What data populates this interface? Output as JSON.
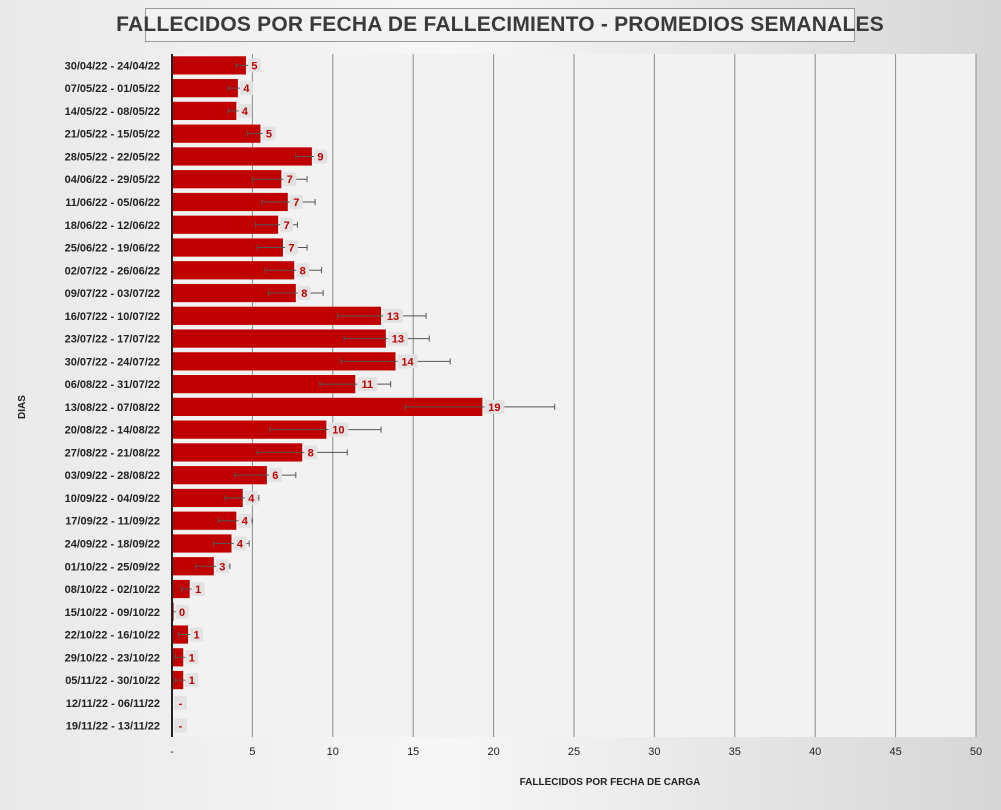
{
  "chart_data": {
    "type": "bar",
    "orientation": "horizontal",
    "title": "FALLECIDOS POR FECHA DE FALLECIMIENTO - PROMEDIOS SEMANALES",
    "ylabel": "DIAS",
    "xlabel": "FALLECIDOS POR FECHA DE CARGA",
    "xlim": [
      0,
      50
    ],
    "xticks": [
      0,
      5,
      10,
      15,
      20,
      25,
      30,
      35,
      40,
      45,
      50
    ],
    "xtick_labels": [
      "-",
      "5",
      "10",
      "15",
      "20",
      "25",
      "30",
      "35",
      "40",
      "45",
      "50"
    ],
    "grid": "vertical",
    "bar_color": "#c00000",
    "label_color": "#c00000",
    "categories": [
      "30/04/22 - 24/04/22",
      "07/05/22 - 01/05/22",
      "14/05/22 - 08/05/22",
      "21/05/22 - 15/05/22",
      "28/05/22 - 22/05/22",
      "04/06/22 - 29/05/22",
      "11/06/22 - 05/06/22",
      "18/06/22 - 12/06/22",
      "25/06/22 - 19/06/22",
      "02/07/22 - 26/06/22",
      "09/07/22 - 03/07/22",
      "16/07/22 - 10/07/22",
      "23/07/22 - 17/07/22",
      "30/07/22 - 24/07/22",
      "06/08/22 - 31/07/22",
      "13/08/22 - 07/08/22",
      "20/08/22 - 14/08/22",
      "27/08/22 - 21/08/22",
      "03/09/22 - 28/08/22",
      "10/09/22 - 04/09/22",
      "17/09/22 - 11/09/22",
      "24/09/22 - 18/09/22",
      "01/10/22 - 25/09/22",
      "08/10/22 - 02/10/22",
      "15/10/22 - 09/10/22",
      "22/10/22 - 16/10/22",
      "29/10/22 - 23/10/22",
      "05/11/22 - 30/10/22",
      "12/11/22 - 06/11/22",
      "19/11/22 - 13/11/22"
    ],
    "values": [
      4.6,
      4.1,
      4.0,
      5.5,
      8.7,
      6.8,
      7.2,
      6.6,
      6.9,
      7.6,
      7.7,
      13.0,
      13.3,
      13.9,
      11.4,
      19.3,
      9.6,
      8.1,
      5.9,
      4.4,
      4.0,
      3.7,
      2.6,
      1.1,
      0.1,
      1.0,
      0.7,
      0.7,
      0.0,
      0.0
    ],
    "error_low": [
      4.0,
      3.5,
      3.5,
      4.7,
      7.7,
      5.0,
      5.6,
      5.2,
      5.3,
      5.8,
      6.0,
      10.3,
      10.7,
      10.5,
      9.2,
      14.5,
      6.1,
      5.3,
      3.9,
      3.3,
      2.9,
      2.6,
      1.5,
      0.6,
      0.0,
      0.4,
      0.2,
      0.2,
      0.0,
      0.0
    ],
    "error_high": [
      5.0,
      4.6,
      4.5,
      6.2,
      9.6,
      8.4,
      8.9,
      7.8,
      8.4,
      9.3,
      9.4,
      15.8,
      16.0,
      17.3,
      13.6,
      23.8,
      13.0,
      10.9,
      7.7,
      5.4,
      5.0,
      4.8,
      3.6,
      1.5,
      0.3,
      1.6,
      1.2,
      1.2,
      0.0,
      0.0
    ],
    "data_labels": [
      "5",
      "4",
      "4",
      "5",
      "9",
      "7",
      "7",
      "7",
      "7",
      "8",
      "8",
      "13",
      "13",
      "14",
      "11",
      "19",
      "10",
      "8",
      "6",
      "4",
      "4",
      "4",
      "3",
      "1",
      "0",
      "1",
      "1",
      "1",
      "-",
      "-"
    ]
  }
}
